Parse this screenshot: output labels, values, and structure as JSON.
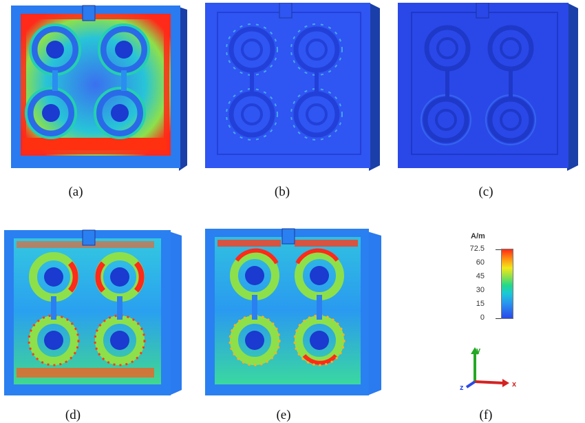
{
  "panels": [
    {
      "id": "a",
      "caption": "(a)"
    },
    {
      "id": "b",
      "caption": "(b)"
    },
    {
      "id": "c",
      "caption": "(c)"
    },
    {
      "id": "d",
      "caption": "(d)"
    },
    {
      "id": "e",
      "caption": "(e)"
    },
    {
      "id": "f",
      "caption": "(f)"
    }
  ],
  "legend": {
    "unit": "A/m",
    "ticks": [
      "72.5",
      "60",
      "45",
      "30",
      "15",
      "0"
    ]
  },
  "axes": {
    "x": "x",
    "y": "y",
    "z": "z"
  },
  "colors": {
    "field_low": "#2a48e8",
    "field_mid": "#22d98a",
    "field_high": "#ff2a1a",
    "substrate_side": "#1b3fa8"
  }
}
